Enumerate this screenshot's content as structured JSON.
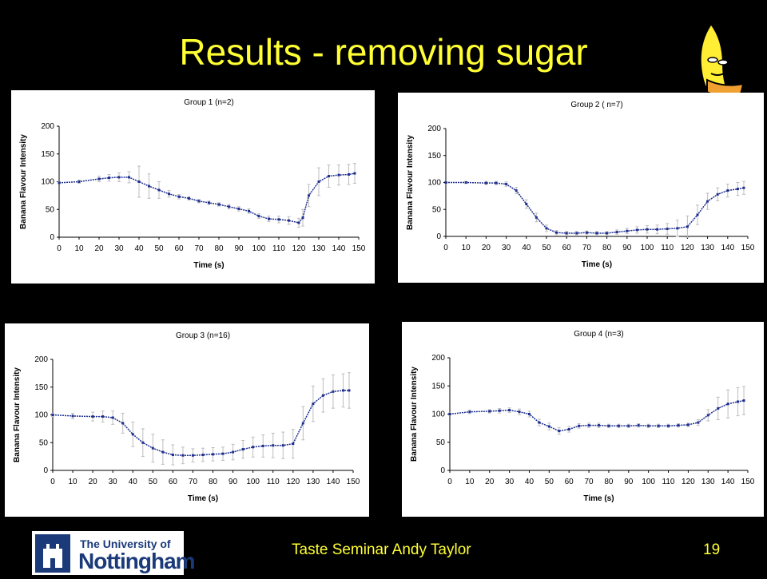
{
  "slide": {
    "title": "Results - removing sugar",
    "footer": "Taste Seminar Andy Taylor",
    "page_number": "19",
    "logo": {
      "line1": "The University of",
      "line2": "Nottingham"
    },
    "colors": {
      "background": "#000000",
      "title": "#ffff33",
      "series": "#1f2f8f",
      "error": "#bdbdbd"
    }
  },
  "chart_data": [
    {
      "type": "line",
      "title": "Group 1  (n=2)",
      "xlabel": "Time (s)",
      "ylabel": "Banana Flavour Intensity",
      "xlim": [
        0,
        150
      ],
      "ylim": [
        0,
        200
      ],
      "xticks": [
        0,
        10,
        20,
        30,
        40,
        50,
        60,
        70,
        80,
        90,
        100,
        110,
        120,
        130,
        140,
        150
      ],
      "yticks": [
        0,
        50,
        100,
        150,
        200
      ],
      "grid": false,
      "series": [
        {
          "x": [
            0,
            10,
            20,
            25,
            30,
            35,
            40,
            45,
            50,
            55,
            60,
            65,
            70,
            75,
            80,
            85,
            90,
            95,
            100,
            105,
            110,
            115,
            120,
            122,
            125,
            130,
            135,
            140,
            145,
            148
          ],
          "y": [
            98,
            100,
            105,
            107,
            108,
            108,
            100,
            92,
            85,
            78,
            73,
            70,
            65,
            62,
            59,
            55,
            51,
            47,
            38,
            33,
            32,
            30,
            26,
            35,
            75,
            100,
            110,
            112,
            113,
            115
          ],
          "err": [
            2,
            3,
            5,
            6,
            8,
            10,
            28,
            22,
            15,
            6,
            4,
            3,
            3,
            3,
            3,
            4,
            4,
            4,
            4,
            5,
            6,
            7,
            8,
            15,
            20,
            25,
            20,
            18,
            18,
            18
          ]
        }
      ]
    },
    {
      "type": "line",
      "title": "Group 2 ( n=7)",
      "xlabel": "Time (s)",
      "ylabel": "Banana Flavour Intensity",
      "xlim": [
        0,
        150
      ],
      "ylim": [
        0,
        200
      ],
      "xticks": [
        0,
        10,
        20,
        30,
        40,
        50,
        60,
        70,
        80,
        90,
        100,
        110,
        120,
        130,
        140,
        150
      ],
      "yticks": [
        0,
        50,
        100,
        150,
        200
      ],
      "grid": false,
      "series": [
        {
          "x": [
            0,
            10,
            20,
            25,
            30,
            35,
            40,
            45,
            50,
            55,
            60,
            65,
            70,
            75,
            80,
            85,
            90,
            95,
            100,
            105,
            110,
            115,
            120,
            125,
            130,
            135,
            140,
            145,
            148
          ],
          "y": [
            100,
            100,
            99,
            99,
            97,
            85,
            60,
            35,
            15,
            7,
            6,
            6,
            7,
            6,
            6,
            8,
            10,
            12,
            13,
            13,
            14,
            15,
            18,
            40,
            65,
            78,
            85,
            88,
            90
          ],
          "err": [
            2,
            2,
            3,
            3,
            4,
            6,
            8,
            8,
            6,
            4,
            3,
            3,
            3,
            3,
            3,
            4,
            5,
            6,
            7,
            8,
            10,
            15,
            20,
            18,
            15,
            12,
            12,
            12,
            12
          ]
        }
      ]
    },
    {
      "type": "line",
      "title": "Group 3 (n=16)",
      "xlabel": "Time (s)",
      "ylabel": "Banana Flavour Intensity",
      "xlim": [
        0,
        150
      ],
      "ylim": [
        0,
        200
      ],
      "xticks": [
        0,
        10,
        20,
        30,
        40,
        50,
        60,
        70,
        80,
        90,
        100,
        110,
        120,
        130,
        140,
        150
      ],
      "yticks": [
        0,
        50,
        100,
        150,
        200
      ],
      "grid": false,
      "series": [
        {
          "x": [
            0,
            10,
            20,
            25,
            30,
            35,
            40,
            45,
            50,
            55,
            60,
            65,
            70,
            75,
            80,
            85,
            90,
            95,
            100,
            105,
            110,
            115,
            120,
            125,
            130,
            135,
            140,
            145,
            148
          ],
          "y": [
            100,
            98,
            97,
            97,
            95,
            85,
            65,
            50,
            40,
            33,
            28,
            27,
            27,
            28,
            29,
            30,
            33,
            38,
            42,
            44,
            45,
            45,
            48,
            85,
            120,
            135,
            142,
            144,
            144
          ],
          "err": [
            3,
            5,
            8,
            10,
            12,
            18,
            22,
            25,
            25,
            22,
            18,
            15,
            12,
            12,
            12,
            12,
            14,
            16,
            18,
            20,
            22,
            24,
            26,
            30,
            32,
            30,
            30,
            30,
            32
          ]
        }
      ]
    },
    {
      "type": "line",
      "title": "Group 4 (n=3)",
      "xlabel": "Time (s)",
      "ylabel": "Banana Flavour Intensity",
      "xlim": [
        0,
        150
      ],
      "ylim": [
        0,
        200
      ],
      "xticks": [
        0,
        10,
        20,
        30,
        40,
        50,
        60,
        70,
        80,
        90,
        100,
        110,
        120,
        130,
        140,
        150
      ],
      "yticks": [
        0,
        50,
        100,
        150,
        200
      ],
      "grid": false,
      "series": [
        {
          "x": [
            0,
            10,
            20,
            25,
            30,
            35,
            40,
            45,
            50,
            55,
            60,
            65,
            70,
            75,
            80,
            85,
            90,
            95,
            100,
            105,
            110,
            115,
            120,
            125,
            130,
            135,
            140,
            145,
            148
          ],
          "y": [
            100,
            104,
            105,
            106,
            107,
            104,
            100,
            85,
            78,
            70,
            73,
            79,
            80,
            80,
            79,
            79,
            79,
            80,
            79,
            79,
            79,
            80,
            81,
            85,
            98,
            110,
            118,
            122,
            124
          ],
          "err": [
            2,
            3,
            3,
            4,
            4,
            5,
            5,
            6,
            6,
            6,
            5,
            4,
            4,
            4,
            3,
            3,
            3,
            3,
            3,
            3,
            3,
            3,
            3,
            5,
            10,
            20,
            25,
            25,
            25
          ]
        }
      ]
    }
  ]
}
